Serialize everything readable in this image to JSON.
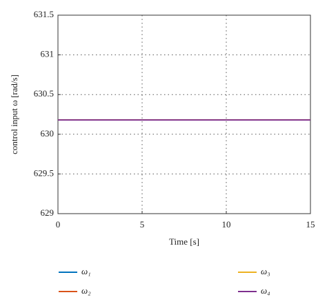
{
  "chart_data": {
    "type": "line",
    "x_label": "Time [s]",
    "y_label": "control input ω [rad/s]",
    "x": [
      0,
      15
    ],
    "series": [
      {
        "name": "ω₁",
        "color": "#0072BD",
        "values": [
          630.18,
          630.18
        ]
      },
      {
        "name": "ω₂",
        "color": "#D95319",
        "values": [
          630.18,
          630.18
        ]
      },
      {
        "name": "ω₃",
        "color": "#EDB120",
        "values": [
          630.18,
          630.18
        ]
      },
      {
        "name": "ω₄",
        "color": "#7E2F8E",
        "values": [
          630.18,
          630.18
        ]
      }
    ],
    "xlim": [
      0,
      15
    ],
    "xticks": [
      0,
      5,
      10,
      15
    ],
    "ylim": [
      629,
      631.5
    ],
    "yticks": [
      629,
      629.5,
      630,
      630.5,
      631,
      631.5
    ],
    "grid": true,
    "legend": "bottom"
  }
}
